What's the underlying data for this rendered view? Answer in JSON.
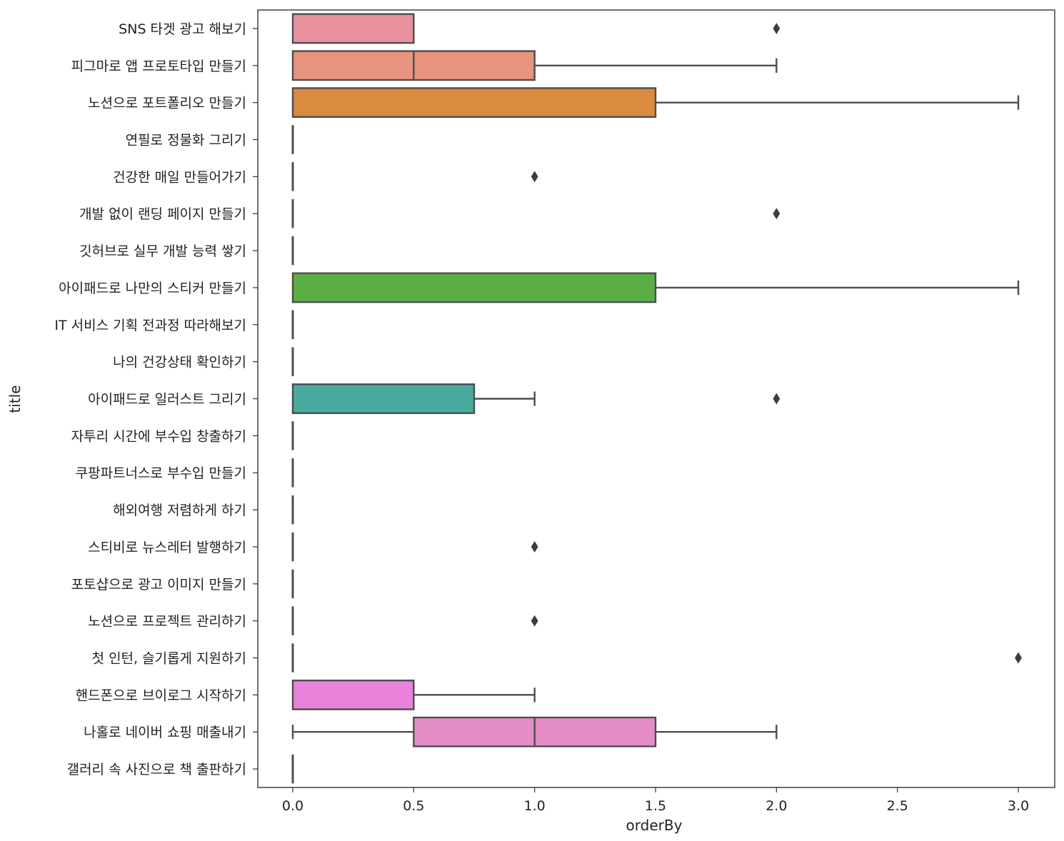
{
  "chart_data": {
    "type": "boxplot",
    "orientation": "horizontal",
    "xlabel": "orderBy",
    "ylabel": "title",
    "xlim": [
      -0.15,
      3.15
    ],
    "xticks": [
      0.0,
      0.5,
      1.0,
      1.5,
      2.0,
      2.5,
      3.0
    ],
    "xtick_labels": [
      "0.0",
      "0.5",
      "1.0",
      "1.5",
      "2.0",
      "2.5",
      "3.0"
    ],
    "grid": false,
    "categories": [
      {
        "label": "SNS 타겟 광고 해보기",
        "color": "#e8909c",
        "whisker_low": 0,
        "q1": 0,
        "median": 0,
        "q3": 0.5,
        "whisker_high": 0.5,
        "outliers": [
          2
        ]
      },
      {
        "label": "피그마로 앱 프로토타입 만들기",
        "color": "#e7937e",
        "whisker_low": 0,
        "q1": 0,
        "median": 0.5,
        "q3": 1,
        "whisker_high": 2,
        "outliers": []
      },
      {
        "label": "노션으로 포트폴리오 만들기",
        "color": "#db8b40",
        "whisker_low": 0,
        "q1": 0,
        "median": 0,
        "q3": 1.5,
        "whisker_high": 3,
        "outliers": []
      },
      {
        "label": "연필로 정물화 그리기",
        "color": "#c99a3f",
        "whisker_low": 0,
        "q1": 0,
        "median": 0,
        "q3": 0,
        "whisker_high": 0,
        "outliers": []
      },
      {
        "label": "건강한 매일 만들어가기",
        "color": "#b3a23c",
        "whisker_low": 0,
        "q1": 0,
        "median": 0,
        "q3": 0,
        "whisker_high": 0,
        "outliers": [
          1
        ]
      },
      {
        "label": "개발 없이 랜딩 페이지 만들기",
        "color": "#9aab3b",
        "whisker_low": 0,
        "q1": 0,
        "median": 0,
        "q3": 0,
        "whisker_high": 0,
        "outliers": [
          2
        ]
      },
      {
        "label": "깃허브로 실무 개발 능력 쌓기",
        "color": "#7db23c",
        "whisker_low": 0,
        "q1": 0,
        "median": 0,
        "q3": 0,
        "whisker_high": 0,
        "outliers": []
      },
      {
        "label": "아이패드로 나만의 스티커 만들기",
        "color": "#5bae46",
        "whisker_low": 0,
        "q1": 0,
        "median": 0,
        "q3": 1.5,
        "whisker_high": 3,
        "outliers": []
      },
      {
        "label": "IT 서비스 기획 전과정 따라해보기",
        "color": "#4aad78",
        "whisker_low": 0,
        "q1": 0,
        "median": 0,
        "q3": 0,
        "whisker_high": 0,
        "outliers": []
      },
      {
        "label": "나의 건강상태 확인하기",
        "color": "#48ad92",
        "whisker_low": 0,
        "q1": 0,
        "median": 0,
        "q3": 0,
        "whisker_high": 0,
        "outliers": []
      },
      {
        "label": "아이패드로 일러스트 그리기",
        "color": "#48ab9f",
        "whisker_low": 0,
        "q1": 0,
        "median": 0,
        "q3": 0.75,
        "whisker_high": 1,
        "outliers": [
          2
        ]
      },
      {
        "label": "자투리 시간에 부수입 창출하기",
        "color": "#4aa9ae",
        "whisker_low": 0,
        "q1": 0,
        "median": 0,
        "q3": 0,
        "whisker_high": 0,
        "outliers": []
      },
      {
        "label": "쿠팡파트너스로 부수입 만들기",
        "color": "#4ca7c2",
        "whisker_low": 0,
        "q1": 0,
        "median": 0,
        "q3": 0,
        "whisker_high": 0,
        "outliers": []
      },
      {
        "label": "해외여행 저렴하게 하기",
        "color": "#55a3d8",
        "whisker_low": 0,
        "q1": 0,
        "median": 0,
        "q3": 0,
        "whisker_high": 0,
        "outliers": []
      },
      {
        "label": "스티비로 뉴스레터 발행하기",
        "color": "#7b9ce8",
        "whisker_low": 0,
        "q1": 0,
        "median": 0,
        "q3": 0,
        "whisker_high": 0,
        "outliers": [
          1
        ]
      },
      {
        "label": "포토샵으로 광고 이미지 만들기",
        "color": "#a893ea",
        "whisker_low": 0,
        "q1": 0,
        "median": 0,
        "q3": 0,
        "whisker_high": 0,
        "outliers": []
      },
      {
        "label": "노션으로 프로젝트 관리하기",
        "color": "#c98ae6",
        "whisker_low": 0,
        "q1": 0,
        "median": 0,
        "q3": 0,
        "whisker_high": 0,
        "outliers": [
          1
        ]
      },
      {
        "label": "첫 인턴, 슬기롭게 지원하기",
        "color": "#e17fe1",
        "whisker_low": 0,
        "q1": 0,
        "median": 0,
        "q3": 0,
        "whisker_high": 0,
        "outliers": [
          3
        ]
      },
      {
        "label": "핸드폰으로 브이로그 시작하기",
        "color": "#e882da",
        "whisker_low": 0,
        "q1": 0,
        "median": 0,
        "q3": 0.5,
        "whisker_high": 1,
        "outliers": []
      },
      {
        "label": "나홀로 네이버 쇼핑 매출내기",
        "color": "#e48cc6",
        "whisker_low": 0,
        "q1": 0.5,
        "median": 1,
        "q3": 1.5,
        "whisker_high": 2,
        "outliers": []
      },
      {
        "label": "갤러리 속 사진으로 책 출판하기",
        "color": "#e892b4",
        "whisker_low": 0,
        "q1": 0,
        "median": 0,
        "q3": 0,
        "whisker_high": 0,
        "outliers": []
      }
    ]
  }
}
